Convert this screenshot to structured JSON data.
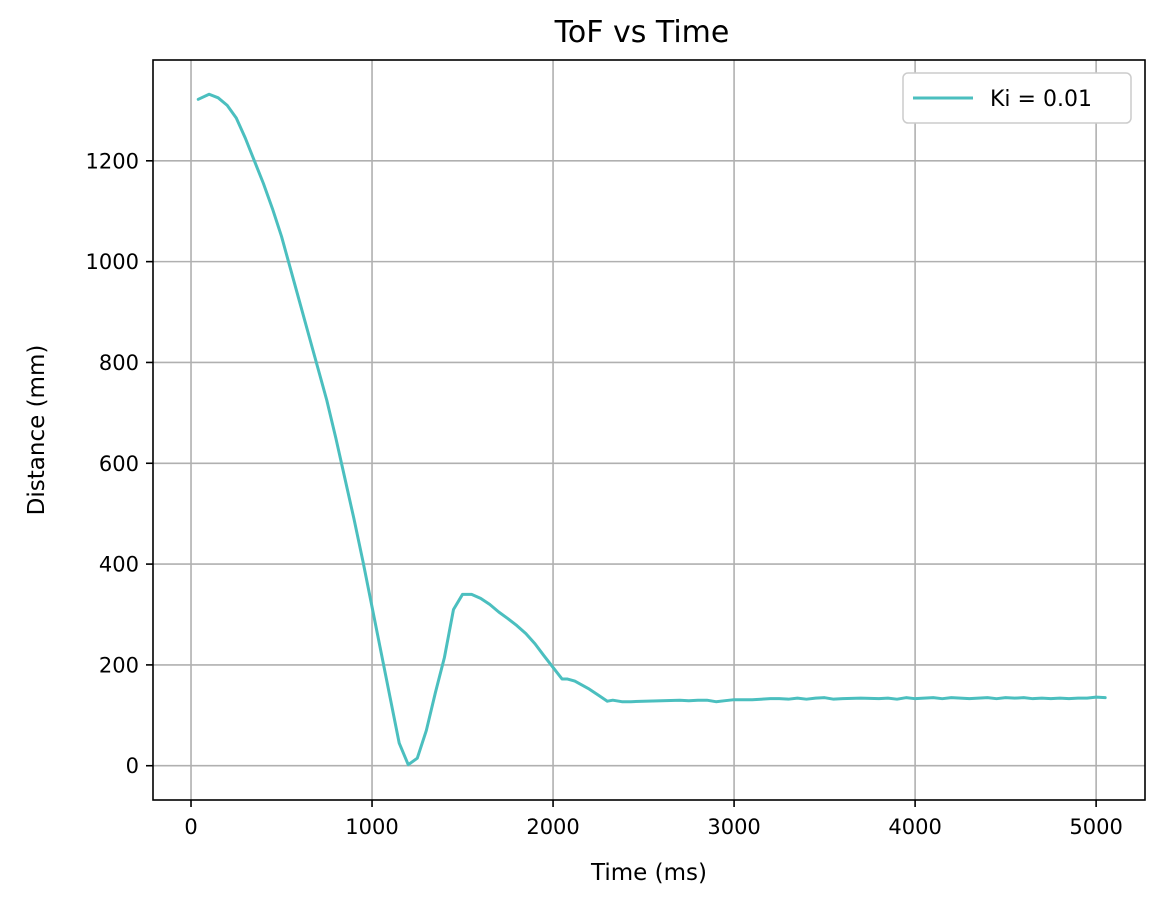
{
  "chart_data": {
    "type": "line",
    "title": "ToF vs Time",
    "xlabel": "Time (ms)",
    "ylabel": "Distance (mm)",
    "xlim": [
      -210,
      5270
    ],
    "ylim": [
      -68,
      1400
    ],
    "x_ticks": [
      0,
      1000,
      2000,
      3000,
      4000,
      5000
    ],
    "x_tick_labels": [
      "0",
      "1000",
      "2000",
      "3000",
      "4000",
      "5000"
    ],
    "y_ticks": [
      0,
      200,
      400,
      600,
      800,
      1000,
      1200
    ],
    "y_tick_labels": [
      "0",
      "200",
      "400",
      "600",
      "800",
      "1000",
      "1200"
    ],
    "grid": true,
    "legend": "top-right",
    "series": [
      {
        "name": "Ki = 0.01",
        "color": "#4bbfbf",
        "x": [
          40,
          100,
          150,
          200,
          250,
          300,
          350,
          400,
          450,
          500,
          550,
          600,
          650,
          700,
          750,
          800,
          850,
          900,
          950,
          1000,
          1050,
          1100,
          1150,
          1200,
          1250,
          1300,
          1350,
          1400,
          1450,
          1500,
          1550,
          1600,
          1650,
          1700,
          1750,
          1800,
          1850,
          1900,
          1950,
          2000,
          2050,
          2080,
          2120,
          2200,
          2250,
          2300,
          2330,
          2380,
          2430,
          2500,
          2600,
          2700,
          2750,
          2800,
          2850,
          2900,
          2950,
          3000,
          3100,
          3200,
          3250,
          3300,
          3350,
          3400,
          3450,
          3500,
          3550,
          3600,
          3700,
          3800,
          3850,
          3900,
          3950,
          4000,
          4050,
          4100,
          4150,
          4200,
          4250,
          4300,
          4350,
          4400,
          4450,
          4500,
          4550,
          4600,
          4650,
          4700,
          4750,
          4800,
          4850,
          4900,
          4950,
          5000,
          5050
        ],
        "y": [
          1322,
          1332,
          1325,
          1310,
          1285,
          1245,
          1200,
          1155,
          1105,
          1050,
          985,
          920,
          855,
          790,
          725,
          650,
          570,
          490,
          405,
          315,
          225,
          135,
          45,
          2,
          15,
          70,
          145,
          215,
          310,
          340,
          340,
          332,
          320,
          305,
          292,
          278,
          262,
          242,
          218,
          195,
          172,
          172,
          168,
          152,
          140,
          128,
          130,
          127,
          127,
          128,
          129,
          130,
          129,
          130,
          130,
          127,
          129,
          131,
          131,
          133,
          133,
          132,
          134,
          132,
          134,
          135,
          132,
          133,
          134,
          133,
          134,
          132,
          135,
          133,
          134,
          135,
          133,
          135,
          134,
          133,
          134,
          135,
          133,
          135,
          134,
          135,
          133,
          134,
          133,
          134,
          133,
          134,
          134,
          136,
          135
        ]
      }
    ]
  }
}
